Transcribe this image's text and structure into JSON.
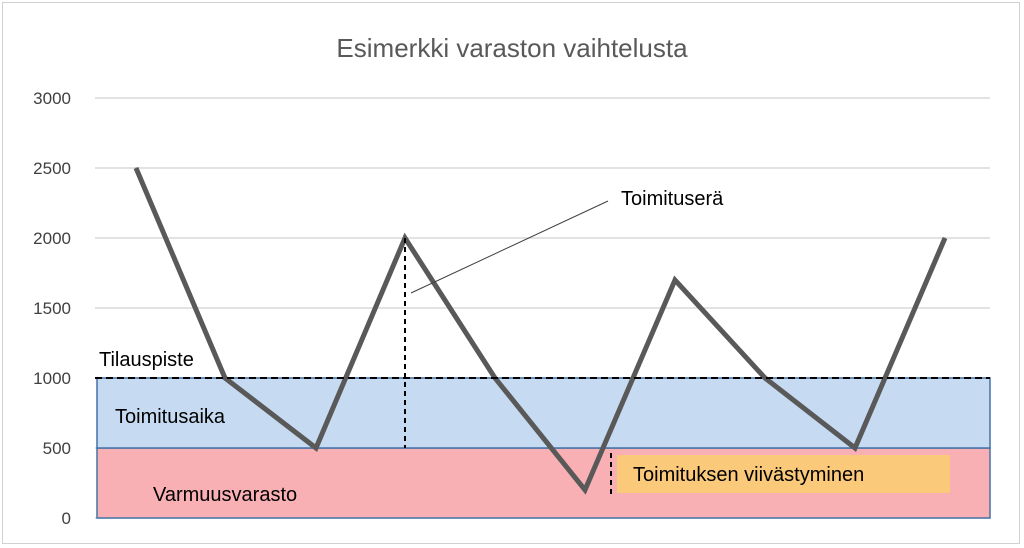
{
  "chart_data": {
    "type": "line",
    "title": "Esimerkki varaston vaihtelusta",
    "xlabel": "",
    "ylabel": "",
    "ylim": [
      0,
      3000
    ],
    "yticks": [
      0,
      500,
      1000,
      1500,
      2000,
      2500,
      3000
    ],
    "grid": true,
    "x": [
      0,
      1,
      2,
      3,
      4,
      5,
      6,
      7,
      8,
      9
    ],
    "series": [
      {
        "values": [
          2500,
          1000,
          500,
          2000,
          1000,
          200,
          1700,
          1000,
          500,
          2000
        ]
      }
    ],
    "bands": [
      {
        "label": "Varmuusvarasto",
        "from": 0,
        "to": 500,
        "color": "#f9b0b5"
      },
      {
        "label": "Toimitusaika",
        "from": 500,
        "to": 1000,
        "color": "#c6dbf1"
      }
    ],
    "reorder_line": {
      "label": "Tilauspiste",
      "value": 1000
    },
    "annotations": {
      "delivery_batch": "Toimituserä",
      "delay": "Toimituksen viivästyminen"
    },
    "colors": {
      "line": "#595959",
      "grid": "#d9d9d9",
      "band_border": "#4472a8",
      "delay_box": "#fbc97a"
    }
  }
}
